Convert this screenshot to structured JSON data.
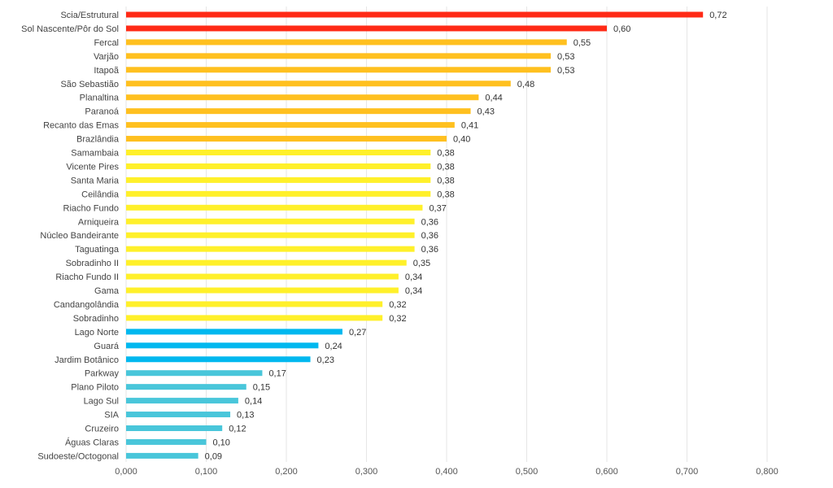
{
  "chart_data": {
    "type": "bar",
    "orientation": "horizontal",
    "categories": [
      "Scia/Estrutural",
      "Sol Nascente/Pôr do Sol",
      "Fercal",
      "Varjão",
      "Itapoã",
      "São Sebastião",
      "Planaltina",
      "Paranoá",
      "Recanto das Emas",
      "Brazlândia",
      "Samambaia",
      "Vicente Pires",
      "Santa Maria",
      "Ceilândia",
      "Riacho Fundo",
      "Arniqueira",
      "Núcleo Bandeirante",
      "Taguatinga",
      "Sobradinho II",
      "Riacho Fundo II",
      "Gama",
      "Candangolândia",
      "Sobradinho",
      "Lago Norte",
      "Guará",
      "Jardim Botânico",
      "Parkway",
      "Plano Piloto",
      "Lago Sul",
      "SIA",
      "Cruzeiro",
      "Águas Claras",
      "Sudoeste/Octogonal"
    ],
    "values": [
      0.72,
      0.6,
      0.55,
      0.53,
      0.53,
      0.48,
      0.44,
      0.43,
      0.41,
      0.4,
      0.38,
      0.38,
      0.38,
      0.38,
      0.37,
      0.36,
      0.36,
      0.36,
      0.35,
      0.34,
      0.34,
      0.32,
      0.32,
      0.27,
      0.24,
      0.23,
      0.17,
      0.15,
      0.14,
      0.13,
      0.12,
      0.1,
      0.09
    ],
    "value_labels": [
      "0,72",
      "0,60",
      "0,55",
      "0,53",
      "0,53",
      "0,48",
      "0,44",
      "0,43",
      "0,41",
      "0,40",
      "0,38",
      "0,38",
      "0,38",
      "0,38",
      "0,37",
      "0,36",
      "0,36",
      "0,36",
      "0,35",
      "0,34",
      "0,34",
      "0,32",
      "0,32",
      "0,27",
      "0,24",
      "0,23",
      "0,17",
      "0,15",
      "0,14",
      "0,13",
      "0,12",
      "0,10",
      "0,09"
    ],
    "bar_colors": [
      "#ff2a16",
      "#ff2a16",
      "#ffc01f",
      "#ffc01f",
      "#ffc01f",
      "#ffc01f",
      "#ffc01f",
      "#ffc01f",
      "#ffc01f",
      "#ffc01f",
      "#fff02a",
      "#fff02a",
      "#fff02a",
      "#fff02a",
      "#fff02a",
      "#fff02a",
      "#fff02a",
      "#fff02a",
      "#fff02a",
      "#fff02a",
      "#fff02a",
      "#fff02a",
      "#fff02a",
      "#00b8ef",
      "#00b8ef",
      "#00b8ef",
      "#49c6da",
      "#49c6da",
      "#49c6da",
      "#49c6da",
      "#49c6da",
      "#49c6da",
      "#49c6da"
    ],
    "x_ticks": [
      0,
      0.1,
      0.2,
      0.3,
      0.4,
      0.5,
      0.6,
      0.7,
      0.8
    ],
    "x_tick_labels": [
      "0,000",
      "0,100",
      "0,200",
      "0,300",
      "0,400",
      "0,500",
      "0,600",
      "0,700",
      "0,800"
    ],
    "xlim": [
      0,
      0.8
    ],
    "title": "",
    "xlabel": "",
    "ylabel": "",
    "grid": "vertical",
    "legend": "none",
    "colors": {
      "gridline": "#e6e6e6",
      "axis_text": "#555555",
      "value_text": "#333333",
      "category_text": "#444444"
    }
  }
}
